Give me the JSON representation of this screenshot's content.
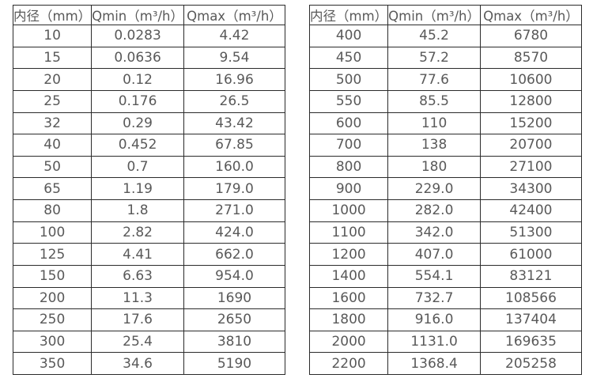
{
  "page": {
    "background": "#ffffff",
    "border_color": "#2b2b2b",
    "text_color": "#595959"
  },
  "left_table": {
    "headers": [
      "内径（mm）",
      "Qmin（m³/h）",
      "Qmax（m³/h）"
    ],
    "rows": [
      [
        "10",
        "0.0283",
        "4.42"
      ],
      [
        "15",
        "0.0636",
        "9.54"
      ],
      [
        "20",
        "0.12",
        "16.96"
      ],
      [
        "25",
        "0.176",
        "26.5"
      ],
      [
        "32",
        "0.29",
        "43.42"
      ],
      [
        "40",
        "0.452",
        "67.85"
      ],
      [
        "50",
        "0.7",
        "160.0"
      ],
      [
        "65",
        "1.19",
        "179.0"
      ],
      [
        "80",
        "1.8",
        "271.0"
      ],
      [
        "100",
        "2.82",
        "424.0"
      ],
      [
        "125",
        "4.41",
        "662.0"
      ],
      [
        "150",
        "6.63",
        "954.0"
      ],
      [
        "200",
        "11.3",
        "1690"
      ],
      [
        "250",
        "17.6",
        "2650"
      ],
      [
        "300",
        "25.4",
        "3810"
      ],
      [
        "350",
        "34.6",
        "5190"
      ]
    ]
  },
  "right_table": {
    "headers": [
      "内径（mm）",
      "Qmin（m³/h）",
      "Qmax（m³/h）"
    ],
    "rows": [
      [
        "400",
        "45.2",
        "6780"
      ],
      [
        "450",
        "57.2",
        "8570"
      ],
      [
        "500",
        "77.6",
        "10600"
      ],
      [
        "550",
        "85.5",
        "12800"
      ],
      [
        "600",
        "110",
        "15200"
      ],
      [
        "700",
        "138",
        "20700"
      ],
      [
        "800",
        "180",
        "27100"
      ],
      [
        "900",
        "229.0",
        "34300"
      ],
      [
        "1000",
        "282.0",
        "42400"
      ],
      [
        "1100",
        "342.0",
        "51300"
      ],
      [
        "1200",
        "407.0",
        "61000"
      ],
      [
        "1400",
        "554.1",
        "83121"
      ],
      [
        "1600",
        "732.7",
        "108566"
      ],
      [
        "1800",
        "916.0",
        "137404"
      ],
      [
        "2000",
        "1131.0",
        "169635"
      ],
      [
        "2200",
        "1368.4",
        "205258"
      ]
    ]
  }
}
